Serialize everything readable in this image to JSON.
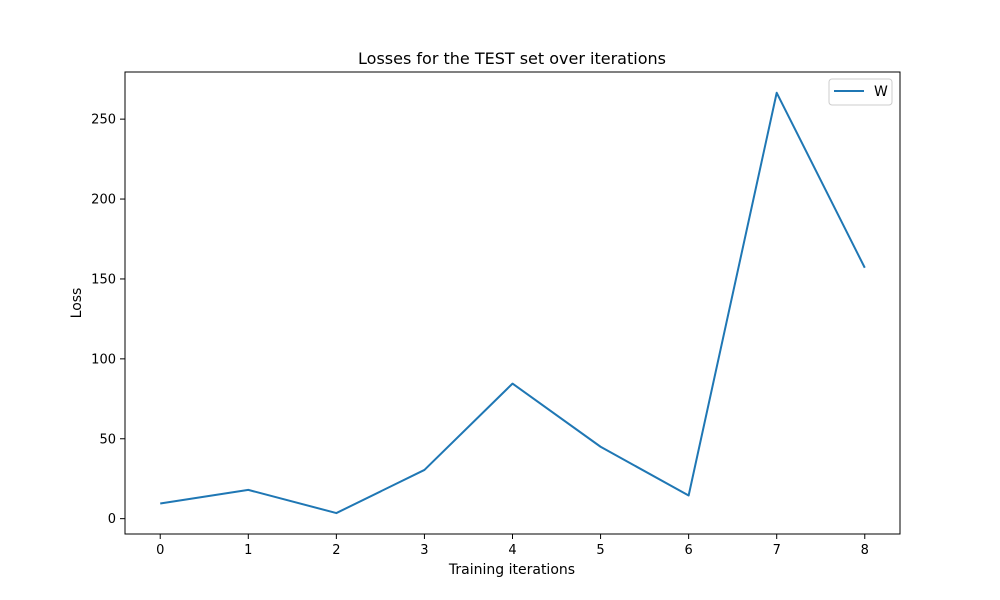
{
  "chart_data": {
    "type": "line",
    "title": "Losses for the TEST set over iterations",
    "xlabel": "Training iterations",
    "ylabel": "Loss",
    "x": [
      0,
      1,
      2,
      3,
      4,
      5,
      6,
      7,
      8
    ],
    "series": [
      {
        "name": "W",
        "color": "#1f77b4",
        "values": [
          9.5,
          18,
          3.5,
          30.5,
          84.5,
          45,
          14.5,
          266.5,
          157
        ]
      }
    ],
    "xlim": [
      -0.4,
      8.4
    ],
    "ylim": [
      -9.6,
      279.5
    ],
    "xticks": [
      0,
      1,
      2,
      3,
      4,
      5,
      6,
      7,
      8
    ],
    "yticks": [
      0,
      50,
      100,
      150,
      200,
      250
    ],
    "grid": false,
    "legend_position": "top-right"
  }
}
